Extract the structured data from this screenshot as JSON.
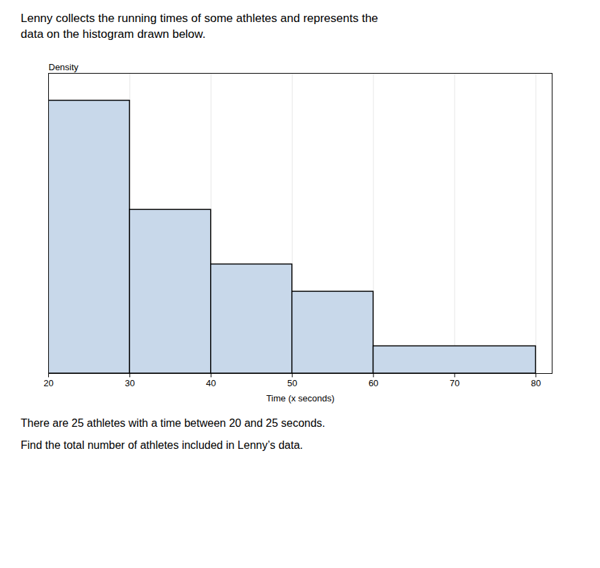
{
  "chart_data": {
    "type": "histogram",
    "title": "Lenny collects the running times of some athletes and represents the\ndata on the histogram drawn below.",
    "xlabel": "Time (x seconds)",
    "ylabel": "Density",
    "bins": [
      20,
      30,
      40,
      50,
      60,
      80
    ],
    "values": [
      5,
      3,
      2,
      1.5,
      0.5
    ],
    "color": "#c8d8ea",
    "xlim": [
      20,
      82
    ],
    "xticks": [
      20,
      30,
      40,
      50,
      60,
      70,
      80
    ],
    "ylim": [
      0,
      5.5
    ],
    "grid": true,
    "tick_labels": "x",
    "annotations": [
      "There are 25 athletes with a time between 20 and 25 seconds.",
      "Find the total number of athletes included in Lenny’s data."
    ]
  }
}
